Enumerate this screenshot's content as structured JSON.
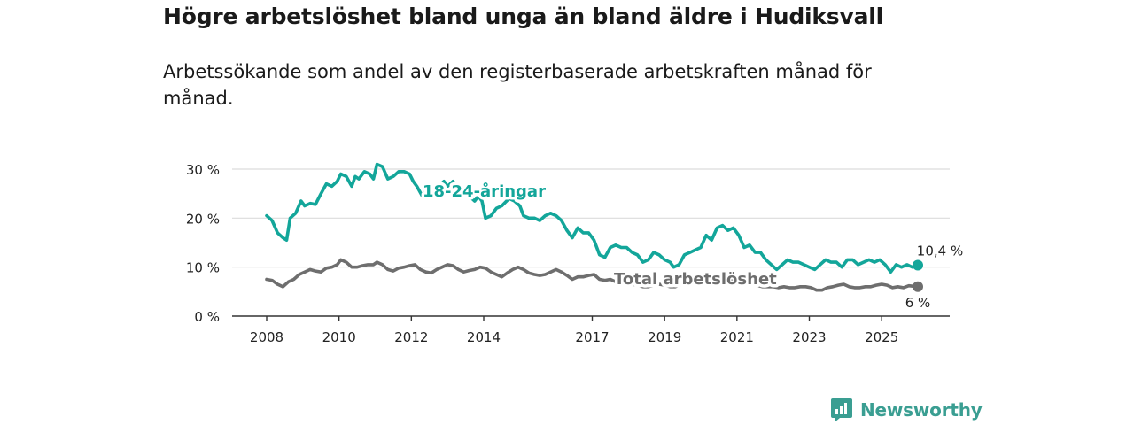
{
  "page": {
    "title": "Högre arbetslöshet bland unga än bland äldre i Hudiksvall",
    "subtitle": "Arbetssökande som andel av den registerbaserade arbetskraften månad för månad.",
    "brand": "Newsworthy"
  },
  "colors": {
    "youth": "#13a69a",
    "total": "#6e6e6e",
    "grid": "#dcdcdc",
    "axis": "#333333",
    "brand": "#3a9e92"
  },
  "chart_data": {
    "type": "line",
    "title": "Högre arbetslöshet bland unga än bland äldre i Hudiksvall",
    "subtitle": "Arbetssökande som andel av den registerbaserade arbetskraften månad för månad.",
    "xlabel": "",
    "ylabel": "",
    "unit": "%",
    "xlim": [
      2008.0,
      2026.0
    ],
    "ylim": [
      0,
      30
    ],
    "y_ticks": [
      0,
      10,
      20,
      30
    ],
    "y_tick_labels": [
      "0 %",
      "10 %",
      "20 %",
      "30 %"
    ],
    "x_ticks": [
      2008,
      2010,
      2012,
      2014,
      2017,
      2019,
      2021,
      2023,
      2025
    ],
    "x_tick_labels": [
      "2008",
      "2010",
      "2012",
      "2014",
      "2017",
      "2019",
      "2021",
      "2023",
      "2025"
    ],
    "grid": true,
    "series": [
      {
        "name": "18-24-åringar",
        "label_position": "inline",
        "end_label": "10,4 %",
        "end_value": 10.4,
        "points": [
          [
            2008.0,
            20.5
          ],
          [
            2008.15,
            19.5
          ],
          [
            2008.3,
            17.0
          ],
          [
            2008.45,
            16.0
          ],
          [
            2008.55,
            15.5
          ],
          [
            2008.65,
            20.0
          ],
          [
            2008.8,
            21.0
          ],
          [
            2008.95,
            23.5
          ],
          [
            2009.05,
            22.5
          ],
          [
            2009.2,
            23.0
          ],
          [
            2009.35,
            22.8
          ],
          [
            2009.5,
            25.0
          ],
          [
            2009.65,
            27.0
          ],
          [
            2009.8,
            26.5
          ],
          [
            2009.95,
            27.5
          ],
          [
            2010.05,
            29.0
          ],
          [
            2010.2,
            28.5
          ],
          [
            2010.35,
            26.5
          ],
          [
            2010.45,
            28.5
          ],
          [
            2010.55,
            28.0
          ],
          [
            2010.7,
            29.5
          ],
          [
            2010.85,
            29.0
          ],
          [
            2010.95,
            28.0
          ],
          [
            2011.05,
            31.0
          ],
          [
            2011.2,
            30.5
          ],
          [
            2011.35,
            28.0
          ],
          [
            2011.5,
            28.5
          ],
          [
            2011.65,
            29.5
          ],
          [
            2011.8,
            29.5
          ],
          [
            2011.95,
            29.0
          ],
          [
            2012.05,
            27.5
          ],
          [
            2012.15,
            26.5
          ],
          [
            2012.3,
            24.5
          ],
          [
            2012.45,
            26.0
          ],
          [
            2012.6,
            25.0
          ],
          [
            2012.75,
            26.5
          ],
          [
            2012.9,
            27.5
          ],
          [
            2013.0,
            26.5
          ],
          [
            2013.15,
            27.5
          ],
          [
            2013.3,
            26.0
          ],
          [
            2013.45,
            25.5
          ],
          [
            2013.6,
            24.5
          ],
          [
            2013.75,
            23.5
          ],
          [
            2013.85,
            24.5
          ],
          [
            2013.95,
            23.5
          ],
          [
            2014.05,
            20.0
          ],
          [
            2014.2,
            20.5
          ],
          [
            2014.35,
            22.0
          ],
          [
            2014.5,
            22.5
          ],
          [
            2014.7,
            24.0
          ],
          [
            2014.85,
            23.5
          ],
          [
            2015.0,
            22.5
          ],
          [
            2015.1,
            20.5
          ],
          [
            2015.25,
            20.0
          ],
          [
            2015.4,
            20.0
          ],
          [
            2015.55,
            19.5
          ],
          [
            2015.7,
            20.5
          ],
          [
            2015.85,
            21.0
          ],
          [
            2016.0,
            20.5
          ],
          [
            2016.15,
            19.5
          ],
          [
            2016.3,
            17.5
          ],
          [
            2016.45,
            16.0
          ],
          [
            2016.6,
            18.0
          ],
          [
            2016.75,
            17.0
          ],
          [
            2016.9,
            17.0
          ],
          [
            2017.05,
            15.5
          ],
          [
            2017.2,
            12.5
          ],
          [
            2017.35,
            12.0
          ],
          [
            2017.5,
            14.0
          ],
          [
            2017.65,
            14.5
          ],
          [
            2017.8,
            14.0
          ],
          [
            2017.95,
            14.0
          ],
          [
            2018.1,
            13.0
          ],
          [
            2018.25,
            12.5
          ],
          [
            2018.4,
            11.0
          ],
          [
            2018.55,
            11.5
          ],
          [
            2018.7,
            13.0
          ],
          [
            2018.85,
            12.5
          ],
          [
            2019.0,
            11.5
          ],
          [
            2019.15,
            11.0
          ],
          [
            2019.25,
            10.0
          ],
          [
            2019.4,
            10.5
          ],
          [
            2019.55,
            12.5
          ],
          [
            2019.7,
            13.0
          ],
          [
            2019.85,
            13.5
          ],
          [
            2020.0,
            14.0
          ],
          [
            2020.15,
            16.5
          ],
          [
            2020.3,
            15.5
          ],
          [
            2020.45,
            18.0
          ],
          [
            2020.6,
            18.5
          ],
          [
            2020.75,
            17.5
          ],
          [
            2020.9,
            18.0
          ],
          [
            2021.05,
            16.5
          ],
          [
            2021.2,
            14.0
          ],
          [
            2021.35,
            14.5
          ],
          [
            2021.5,
            13.0
          ],
          [
            2021.65,
            13.0
          ],
          [
            2021.8,
            11.5
          ],
          [
            2021.95,
            10.5
          ],
          [
            2022.1,
            9.5
          ],
          [
            2022.25,
            10.5
          ],
          [
            2022.4,
            11.5
          ],
          [
            2022.55,
            11.0
          ],
          [
            2022.7,
            11.0
          ],
          [
            2022.85,
            10.5
          ],
          [
            2023.0,
            10.0
          ],
          [
            2023.15,
            9.5
          ],
          [
            2023.3,
            10.5
          ],
          [
            2023.45,
            11.5
          ],
          [
            2023.6,
            11.0
          ],
          [
            2023.75,
            11.0
          ],
          [
            2023.9,
            10.0
          ],
          [
            2024.05,
            11.5
          ],
          [
            2024.2,
            11.5
          ],
          [
            2024.35,
            10.5
          ],
          [
            2024.5,
            11.0
          ],
          [
            2024.65,
            11.5
          ],
          [
            2024.8,
            11.0
          ],
          [
            2024.95,
            11.5
          ],
          [
            2025.1,
            10.5
          ],
          [
            2025.25,
            9.0
          ],
          [
            2025.4,
            10.5
          ],
          [
            2025.55,
            10.0
          ],
          [
            2025.7,
            10.5
          ],
          [
            2025.85,
            10.0
          ],
          [
            2026.0,
            10.4
          ]
        ]
      },
      {
        "name": "Total arbetslöshet",
        "label_position": "inline",
        "end_label": "6 %",
        "end_value": 6.0,
        "points": [
          [
            2008.0,
            7.5
          ],
          [
            2008.15,
            7.3
          ],
          [
            2008.3,
            6.5
          ],
          [
            2008.45,
            6.0
          ],
          [
            2008.6,
            7.0
          ],
          [
            2008.75,
            7.5
          ],
          [
            2008.9,
            8.5
          ],
          [
            2009.05,
            9.0
          ],
          [
            2009.2,
            9.5
          ],
          [
            2009.35,
            9.2
          ],
          [
            2009.5,
            9.0
          ],
          [
            2009.65,
            9.8
          ],
          [
            2009.8,
            10.0
          ],
          [
            2009.95,
            10.5
          ],
          [
            2010.05,
            11.5
          ],
          [
            2010.2,
            11.0
          ],
          [
            2010.35,
            10.0
          ],
          [
            2010.5,
            10.0
          ],
          [
            2010.65,
            10.3
          ],
          [
            2010.8,
            10.5
          ],
          [
            2010.95,
            10.5
          ],
          [
            2011.05,
            11.0
          ],
          [
            2011.2,
            10.5
          ],
          [
            2011.35,
            9.5
          ],
          [
            2011.5,
            9.2
          ],
          [
            2011.65,
            9.8
          ],
          [
            2011.8,
            10.0
          ],
          [
            2011.95,
            10.3
          ],
          [
            2012.1,
            10.5
          ],
          [
            2012.25,
            9.5
          ],
          [
            2012.4,
            9.0
          ],
          [
            2012.55,
            8.8
          ],
          [
            2012.7,
            9.5
          ],
          [
            2012.85,
            10.0
          ],
          [
            2013.0,
            10.5
          ],
          [
            2013.15,
            10.3
          ],
          [
            2013.3,
            9.5
          ],
          [
            2013.45,
            9.0
          ],
          [
            2013.6,
            9.3
          ],
          [
            2013.75,
            9.5
          ],
          [
            2013.9,
            10.0
          ],
          [
            2014.05,
            9.8
          ],
          [
            2014.2,
            9.0
          ],
          [
            2014.35,
            8.5
          ],
          [
            2014.5,
            8.0
          ],
          [
            2014.65,
            8.8
          ],
          [
            2014.8,
            9.5
          ],
          [
            2014.95,
            10.0
          ],
          [
            2015.1,
            9.5
          ],
          [
            2015.25,
            8.8
          ],
          [
            2015.4,
            8.5
          ],
          [
            2015.55,
            8.3
          ],
          [
            2015.7,
            8.5
          ],
          [
            2015.85,
            9.0
          ],
          [
            2016.0,
            9.5
          ],
          [
            2016.15,
            9.0
          ],
          [
            2016.3,
            8.3
          ],
          [
            2016.45,
            7.5
          ],
          [
            2016.6,
            8.0
          ],
          [
            2016.75,
            8.0
          ],
          [
            2016.9,
            8.3
          ],
          [
            2017.05,
            8.5
          ],
          [
            2017.2,
            7.5
          ],
          [
            2017.35,
            7.3
          ],
          [
            2017.5,
            7.5
          ],
          [
            2017.65,
            7.0
          ],
          [
            2017.8,
            6.8
          ],
          [
            2017.95,
            6.5
          ],
          [
            2018.1,
            6.5
          ],
          [
            2018.25,
            6.3
          ],
          [
            2018.4,
            6.0
          ],
          [
            2018.55,
            6.0
          ],
          [
            2018.7,
            6.3
          ],
          [
            2018.85,
            6.5
          ],
          [
            2019.0,
            6.3
          ],
          [
            2019.15,
            6.0
          ],
          [
            2019.3,
            6.0
          ],
          [
            2019.45,
            6.5
          ],
          [
            2019.6,
            6.8
          ],
          [
            2019.75,
            7.0
          ],
          [
            2019.9,
            7.3
          ],
          [
            2020.05,
            7.5
          ],
          [
            2020.2,
            7.8
          ],
          [
            2020.35,
            8.0
          ],
          [
            2020.5,
            8.0
          ],
          [
            2020.65,
            7.5
          ],
          [
            2020.8,
            7.5
          ],
          [
            2020.95,
            7.3
          ],
          [
            2021.1,
            7.0
          ],
          [
            2021.25,
            6.8
          ],
          [
            2021.4,
            6.5
          ],
          [
            2021.55,
            6.3
          ],
          [
            2021.7,
            6.0
          ],
          [
            2021.85,
            6.0
          ],
          [
            2022.0,
            6.0
          ],
          [
            2022.15,
            5.8
          ],
          [
            2022.3,
            6.0
          ],
          [
            2022.45,
            5.8
          ],
          [
            2022.6,
            5.8
          ],
          [
            2022.75,
            6.0
          ],
          [
            2022.9,
            6.0
          ],
          [
            2023.05,
            5.8
          ],
          [
            2023.2,
            5.3
          ],
          [
            2023.35,
            5.3
          ],
          [
            2023.5,
            5.8
          ],
          [
            2023.65,
            6.0
          ],
          [
            2023.8,
            6.3
          ],
          [
            2023.95,
            6.5
          ],
          [
            2024.1,
            6.0
          ],
          [
            2024.25,
            5.8
          ],
          [
            2024.4,
            5.8
          ],
          [
            2024.55,
            6.0
          ],
          [
            2024.7,
            6.0
          ],
          [
            2024.85,
            6.3
          ],
          [
            2025.0,
            6.5
          ],
          [
            2025.15,
            6.3
          ],
          [
            2025.3,
            5.8
          ],
          [
            2025.45,
            6.0
          ],
          [
            2025.6,
            5.8
          ],
          [
            2025.75,
            6.2
          ],
          [
            2026.0,
            6.0
          ]
        ]
      }
    ]
  }
}
